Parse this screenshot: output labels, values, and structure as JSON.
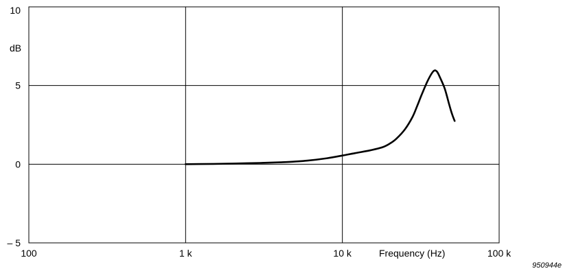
{
  "chart_data": {
    "type": "line",
    "title": "",
    "xlabel": "Frequency (Hz)",
    "ylabel": "dB",
    "x_scale": "log",
    "xlim": [
      100,
      100000
    ],
    "ylim": [
      -5,
      10
    ],
    "x_ticks": [
      {
        "value": 100,
        "label": "100"
      },
      {
        "value": 1000,
        "label": "1 k"
      },
      {
        "value": 10000,
        "label": "10 k"
      },
      {
        "value": 100000,
        "label": "100 k"
      }
    ],
    "y_ticks": [
      {
        "value": 10,
        "label": "10"
      },
      {
        "value": 5,
        "label": "5"
      },
      {
        "value": 0,
        "label": "0"
      },
      {
        "value": -5,
        "label": "– 5"
      }
    ],
    "grid": true,
    "series": [
      {
        "x": [
          1000,
          1500,
          2000,
          3000,
          4000,
          5000,
          6000,
          8000,
          10000,
          12000,
          15000,
          18000,
          20000,
          22000,
          25000,
          28000,
          30000,
          32000,
          35000,
          38000,
          40000,
          42000,
          45000,
          48000,
          50000,
          52000
        ],
        "y": [
          0.0,
          0.02,
          0.04,
          0.08,
          0.12,
          0.17,
          0.23,
          0.38,
          0.55,
          0.7,
          0.88,
          1.08,
          1.3,
          1.6,
          2.2,
          3.0,
          3.7,
          4.4,
          5.3,
          5.9,
          5.9,
          5.5,
          4.8,
          3.8,
          3.2,
          2.75
        ]
      }
    ]
  },
  "figure_id": "950944e"
}
